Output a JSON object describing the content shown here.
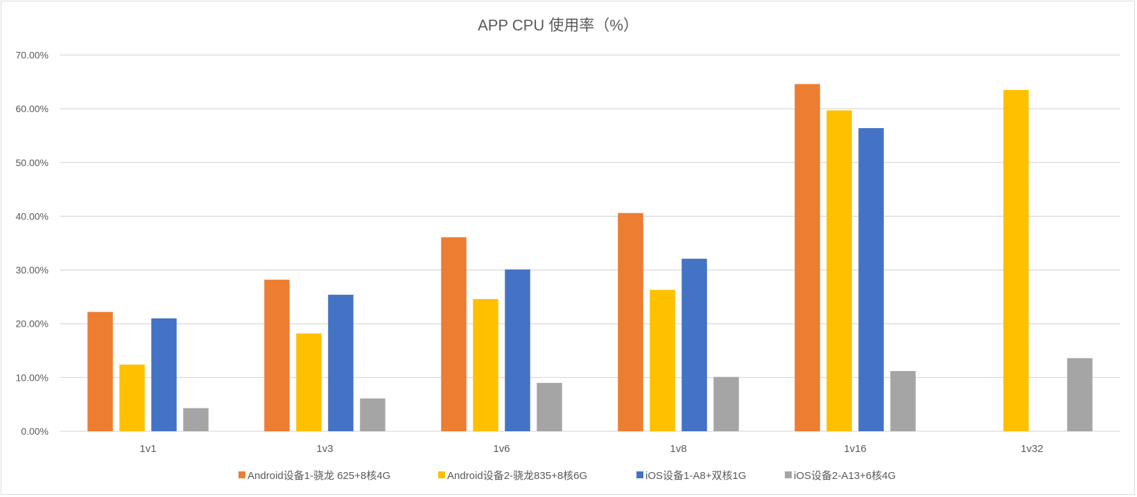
{
  "chart_data": {
    "type": "bar",
    "title": "APP CPU 使用率（%）",
    "xlabel": "",
    "ylabel": "",
    "ylim": [
      0,
      70
    ],
    "yticks": [
      "0.00%",
      "10.00%",
      "20.00%",
      "30.00%",
      "40.00%",
      "50.00%",
      "60.00%",
      "70.00%"
    ],
    "grid": true,
    "legend_position": "bottom",
    "categories": [
      "1v1",
      "1v3",
      "1v6",
      "1v8",
      "1v16",
      "1v32"
    ],
    "series": [
      {
        "name": "Android设备1-骁龙 625+8核4G",
        "color": "#ED7D31",
        "values": [
          22.2,
          28.2,
          36.1,
          40.6,
          64.6,
          null
        ]
      },
      {
        "name": "Android设备2-骁龙835+8核6G",
        "color": "#FFC000",
        "values": [
          12.4,
          18.2,
          24.6,
          26.3,
          59.7,
          63.5
        ]
      },
      {
        "name": "iOS设备1-A8+双核1G",
        "color": "#4472C4",
        "values": [
          21.0,
          25.4,
          30.1,
          32.1,
          56.4,
          null
        ]
      },
      {
        "name": "iOS设备2-A13+6核4G",
        "color": "#A5A5A5",
        "values": [
          4.3,
          6.1,
          9.0,
          10.1,
          11.2,
          13.6
        ]
      }
    ]
  }
}
